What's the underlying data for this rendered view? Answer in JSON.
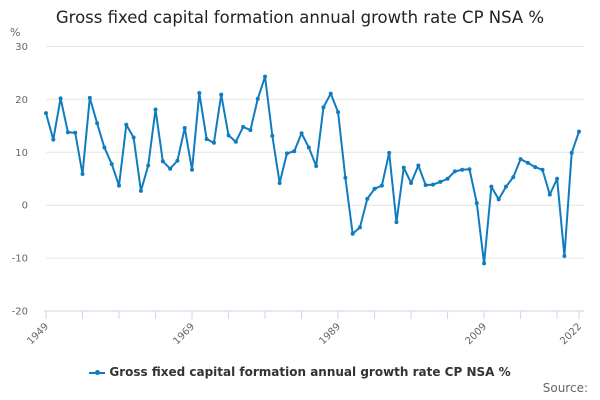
{
  "chart_data": {
    "type": "line",
    "title": "Gross fixed capital formation annual growth rate CP NSA %",
    "ylabel": "%",
    "xlabel": "",
    "ylim": [
      -20,
      30
    ],
    "yticks": [
      "30",
      "20",
      "10",
      "0",
      "-10",
      "-20"
    ],
    "ytick_values": [
      30,
      20,
      10,
      0,
      -10,
      -20
    ],
    "xticks_labeled": [
      "1949",
      "1969",
      "1989",
      "2009",
      "2022"
    ],
    "grid": true,
    "legend_position": "bottom",
    "x": [
      1949,
      1950,
      1951,
      1952,
      1953,
      1954,
      1955,
      1956,
      1957,
      1958,
      1959,
      1960,
      1961,
      1962,
      1963,
      1964,
      1965,
      1966,
      1967,
      1968,
      1969,
      1970,
      1971,
      1972,
      1973,
      1974,
      1975,
      1976,
      1977,
      1978,
      1979,
      1980,
      1981,
      1982,
      1983,
      1984,
      1985,
      1986,
      1987,
      1988,
      1989,
      1990,
      1991,
      1992,
      1993,
      1994,
      1995,
      1996,
      1997,
      1998,
      1999,
      2000,
      2001,
      2002,
      2003,
      2004,
      2005,
      2006,
      2007,
      2008,
      2009,
      2010,
      2011,
      2012,
      2013,
      2014,
      2015,
      2016,
      2017,
      2018,
      2019,
      2020,
      2021,
      2022
    ],
    "series": [
      {
        "name": "Gross fixed capital formation annual growth rate CP NSA %",
        "color": "#0f7cc0",
        "values": [
          17.4,
          12.4,
          20.2,
          13.8,
          13.7,
          5.9,
          20.3,
          15.5,
          10.9,
          7.8,
          3.7,
          15.2,
          12.8,
          2.7,
          7.5,
          18.1,
          8.3,
          6.9,
          8.4,
          14.6,
          6.7,
          21.2,
          12.5,
          11.8,
          20.9,
          13.2,
          12.0,
          14.8,
          14.2,
          20.1,
          24.3,
          13.1,
          4.2,
          9.8,
          10.2,
          13.6,
          10.9,
          7.4,
          18.5,
          21.1,
          17.6,
          5.2,
          -5.4,
          -4.2,
          1.2,
          3.1,
          3.7,
          9.9,
          -3.2,
          7.1,
          4.2,
          7.5,
          3.8,
          3.9,
          4.4,
          5.0,
          6.4,
          6.7,
          6.8,
          0.4,
          -11.0,
          3.5,
          1.1,
          3.5,
          5.3,
          8.7,
          8.0,
          7.2,
          6.7,
          2.0,
          5.0,
          -9.6,
          9.9,
          13.9
        ]
      }
    ]
  },
  "legend": {
    "label": "Gross fixed capital formation annual growth rate CP NSA %"
  },
  "source_label": "Source:"
}
